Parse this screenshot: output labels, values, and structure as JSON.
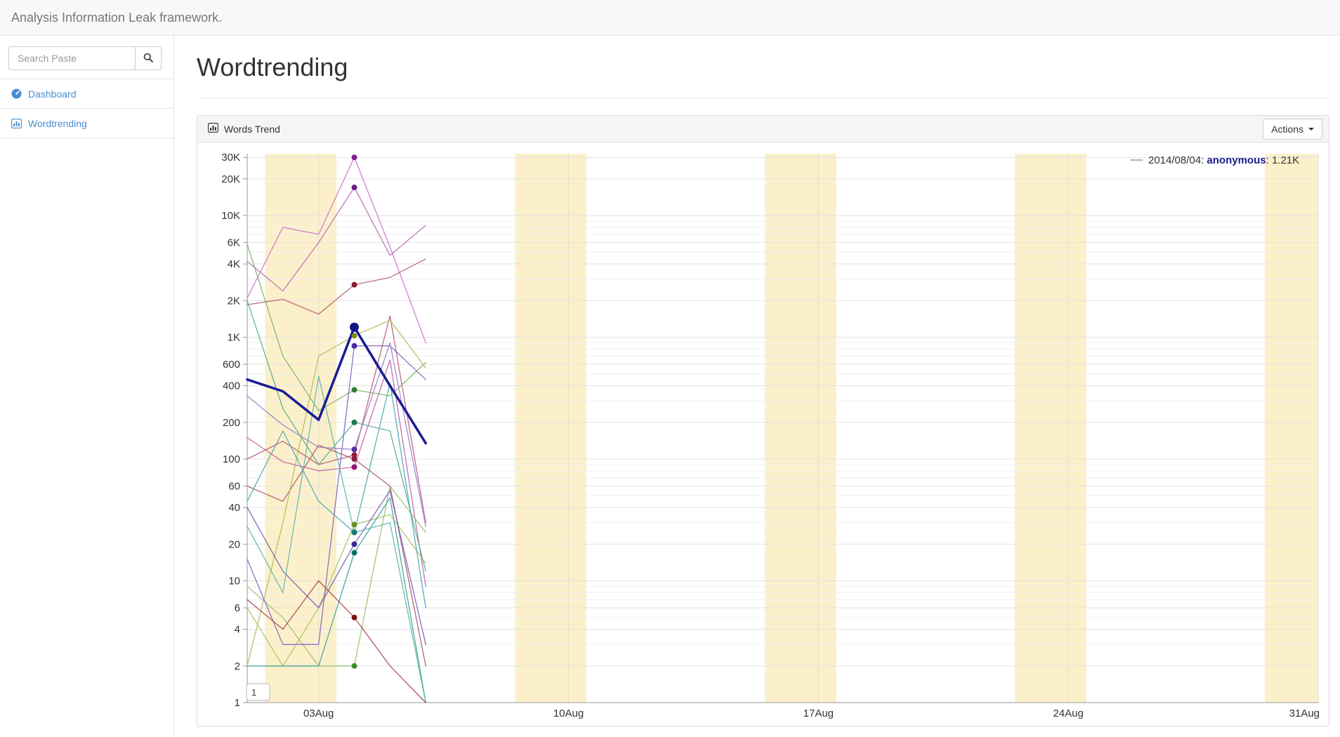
{
  "navbar": {
    "brand": "Analysis Information Leak framework."
  },
  "sidebar": {
    "search": {
      "placeholder": "Search Paste",
      "value": ""
    },
    "items": [
      {
        "label": "Dashboard",
        "icon": "dashboard-icon"
      },
      {
        "label": "Wordtrending",
        "icon": "bar-chart-icon"
      }
    ]
  },
  "page": {
    "title": "Wordtrending"
  },
  "panel": {
    "title": "Words Trend",
    "actions_label": "Actions"
  },
  "chart_data": {
    "type": "line",
    "y_scale": "log",
    "x_unit": "day of August 2014",
    "x_range_days": [
      1,
      31
    ],
    "x_tick_days": [
      3,
      10,
      17,
      24,
      31
    ],
    "x_tick_labels": [
      "03Aug",
      "10Aug",
      "17Aug",
      "24Aug",
      "31Aug"
    ],
    "y_tick_values": [
      1,
      2,
      4,
      6,
      10,
      20,
      40,
      60,
      100,
      200,
      400,
      600,
      1000,
      2000,
      4000,
      6000,
      10000,
      20000,
      30000
    ],
    "y_tick_labels": [
      "1",
      "2",
      "4",
      "6",
      "10",
      "20",
      "40",
      "60",
      "100",
      "200",
      "400",
      "600",
      "1K",
      "2K",
      "4K",
      "6K",
      "10K",
      "20K",
      "30K"
    ],
    "ylim": [
      1,
      30000
    ],
    "grid": true,
    "weekend_band_sundays": [
      3,
      10,
      17,
      24,
      31
    ],
    "hover": {
      "date": "2014/08/04",
      "series": "anonymous",
      "value": "1.21K",
      "day": 4
    },
    "axis_min_box_label": "1",
    "colors": {
      "band": "#fcf0cb",
      "grid_minor": "#efefef",
      "grid_major": "#e2e2e2",
      "vgrid": "#e3ddc9",
      "axis": "#999999",
      "tick_text": "#333333",
      "tooltip_text": "#333333",
      "tooltip_accent": "#1a1a8c",
      "tooltip_dash": "#999999"
    },
    "series": [
      {
        "name": "",
        "color": "#c76dc7",
        "dot_color": "#7d1c92",
        "width": 1.3,
        "days": [
          1,
          2,
          3,
          4,
          5,
          6
        ],
        "values": [
          2100,
          8000,
          7000,
          30000,
          5500,
          900
        ]
      },
      {
        "name": "",
        "color": "#b863ae",
        "dot_color": "#6d1f86",
        "width": 1.3,
        "days": [
          1,
          2,
          3,
          4,
          5,
          6
        ],
        "values": [
          4200,
          2400,
          6000,
          17000,
          4700,
          8300
        ]
      },
      {
        "name": "",
        "color": "#b2596b",
        "dot_color": "#8c1830",
        "width": 1.3,
        "days": [
          1,
          2,
          3,
          4,
          5,
          6
        ],
        "values": [
          1850,
          2050,
          1550,
          2700,
          3100,
          4400
        ]
      },
      {
        "name": "",
        "color": "#b5526b",
        "dot_color": "#8c1d3a",
        "width": 1.3,
        "days": [
          1,
          2,
          3,
          4,
          5,
          6
        ],
        "values": [
          100,
          140,
          90,
          108,
          1500,
          30
        ]
      },
      {
        "name": "",
        "color": "#a84a62",
        "dot_color": "#8c1f38",
        "width": 1.3,
        "days": [
          1,
          2,
          3,
          4,
          5,
          6
        ],
        "values": [
          60,
          45,
          130,
          100,
          60,
          2
        ]
      },
      {
        "name": "",
        "color": "#c058a0",
        "dot_color": "#96186e",
        "width": 1.3,
        "days": [
          1,
          2,
          3,
          4,
          5,
          6
        ],
        "values": [
          150,
          95,
          80,
          86,
          650,
          9
        ]
      },
      {
        "name": "",
        "color": "#74b055",
        "dot_color": "#2e7d32",
        "width": 1.3,
        "days": [
          1,
          2,
          3,
          4,
          5,
          6
        ],
        "values": [
          5800,
          700,
          250,
          370,
          330,
          620
        ]
      },
      {
        "name": "",
        "color": "#46aa85",
        "dot_color": "#1b7a4f",
        "width": 1.3,
        "days": [
          1,
          2,
          3,
          4,
          5,
          6
        ],
        "values": [
          2000,
          260,
          90,
          200,
          170,
          12
        ]
      },
      {
        "name": "",
        "color": "#a8b84e",
        "dot_color": "#7c8a12",
        "width": 1.3,
        "days": [
          1,
          2,
          3,
          4,
          5,
          6
        ],
        "values": [
          2,
          30,
          700,
          1030,
          1380,
          560
        ]
      },
      {
        "name": "",
        "color": "#9fc257",
        "dot_color": "#6b8e23",
        "width": 1.3,
        "days": [
          1,
          2,
          3,
          4,
          5,
          6
        ],
        "values": [
          6,
          2,
          6,
          29,
          35,
          14
        ]
      },
      {
        "name": "",
        "color": "#8fbd68",
        "dot_color": "#3e8e2e",
        "width": 1.3,
        "days": [
          1,
          2,
          3,
          4,
          5,
          6
        ],
        "values": [
          9,
          5,
          2,
          2,
          60,
          25
        ]
      },
      {
        "name": "",
        "color": "#7a5bc0",
        "dot_color": "#4a2a9a",
        "width": 1.3,
        "days": [
          1,
          2,
          3,
          4,
          5,
          6
        ],
        "values": [
          15,
          3,
          3,
          850,
          850,
          450
        ]
      },
      {
        "name": "",
        "color": "#9577cf",
        "dot_color": "#55309c",
        "width": 1.3,
        "days": [
          1,
          2,
          3,
          4,
          5,
          6
        ],
        "values": [
          330,
          190,
          125,
          120,
          900,
          28
        ]
      },
      {
        "name": "",
        "color": "#6d55b5",
        "dot_color": "#3f2a86",
        "width": 1.3,
        "days": [
          1,
          2,
          3,
          4,
          5,
          6
        ],
        "values": [
          40,
          12,
          6,
          20,
          55,
          3
        ]
      },
      {
        "name": "",
        "color": "#3ba6b0",
        "dot_color": "#0e707a",
        "width": 1.3,
        "days": [
          1,
          2,
          3,
          4,
          5,
          6
        ],
        "values": [
          45,
          170,
          45,
          25,
          420,
          6
        ]
      },
      {
        "name": "",
        "color": "#2f9a93",
        "dot_color": "#0b6f68",
        "width": 1.3,
        "days": [
          1,
          2,
          3,
          4,
          5,
          6
        ],
        "values": [
          2,
          2,
          2,
          17,
          48,
          1
        ]
      },
      {
        "name": "",
        "color": "#52b1a3",
        "dot_color": "#117a6b",
        "width": 1.3,
        "days": [
          1,
          2,
          3,
          4,
          5,
          6
        ],
        "values": [
          28,
          8,
          480,
          25,
          30,
          1
        ]
      },
      {
        "name": "",
        "color": "#a33b3b",
        "dot_color": "#7a1010",
        "width": 1.3,
        "days": [
          1,
          2,
          3,
          4,
          5,
          6
        ],
        "values": [
          7,
          4,
          10,
          5,
          2,
          1
        ]
      },
      {
        "name": "anonymous",
        "color": "#1a1a96",
        "dot_color": "#14147e",
        "width": 3.5,
        "days": [
          1,
          2,
          3,
          4,
          5,
          6
        ],
        "values": [
          450,
          360,
          210,
          1210,
          400,
          135
        ]
      }
    ]
  }
}
